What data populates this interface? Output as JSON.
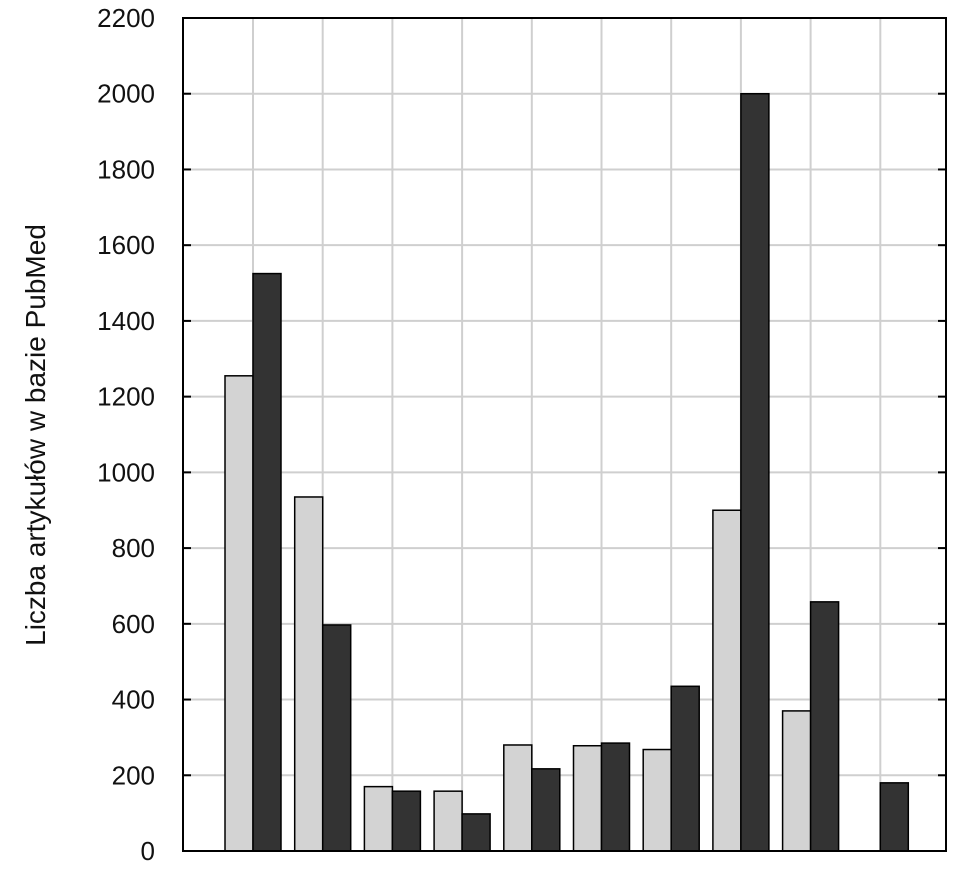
{
  "chart_data": {
    "type": "bar",
    "ylabel": "Liczba artykułów w bazie PubMed",
    "xlabel": "",
    "ylim": [
      0,
      2200
    ],
    "yticks": [
      0,
      200,
      400,
      600,
      800,
      1000,
      1200,
      1400,
      1600,
      1800,
      2000,
      2200
    ],
    "grid": true,
    "series": [
      {
        "color": "#d3d3d3",
        "values": [
          1255,
          935,
          170,
          158,
          280,
          278,
          268,
          900,
          370,
          0
        ]
      },
      {
        "color": "#333333",
        "values": [
          1525,
          597,
          158,
          98,
          217,
          285,
          435,
          2000,
          658,
          180
        ]
      }
    ]
  }
}
